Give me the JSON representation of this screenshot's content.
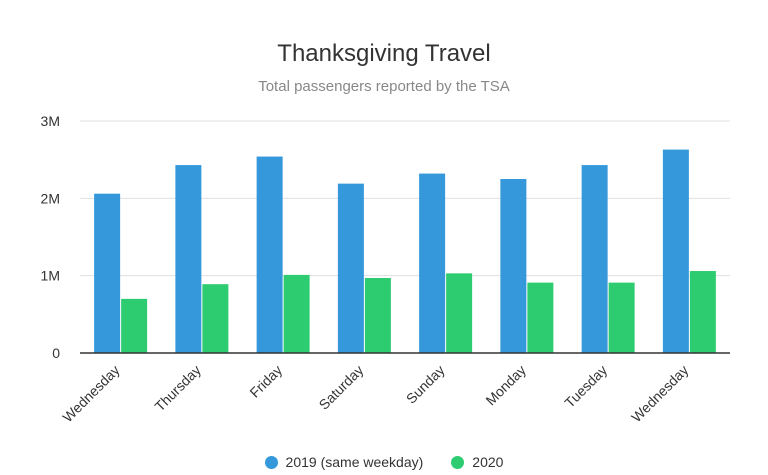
{
  "chart_data": {
    "type": "bar",
    "title": "Thanksgiving Travel",
    "subtitle": "Total passengers reported by the TSA",
    "categories": [
      "Wednesday",
      "Thursday",
      "Friday",
      "Saturday",
      "Sunday",
      "Monday",
      "Tuesday",
      "Wednesday"
    ],
    "series": [
      {
        "name": "2019 (same weekday)",
        "color": "#3498db",
        "values": [
          2.06,
          2.43,
          2.54,
          2.19,
          2.32,
          2.25,
          2.43,
          2.63
        ]
      },
      {
        "name": "2020",
        "color": "#2ecc71",
        "values": [
          0.7,
          0.89,
          1.01,
          0.97,
          1.03,
          0.91,
          0.91,
          1.06
        ]
      }
    ],
    "unit": "millions",
    "yticks": [
      "0",
      "1M",
      "2M",
      "3M"
    ],
    "ylim": [
      0,
      3
    ],
    "grid": true,
    "legend": "bottom"
  }
}
